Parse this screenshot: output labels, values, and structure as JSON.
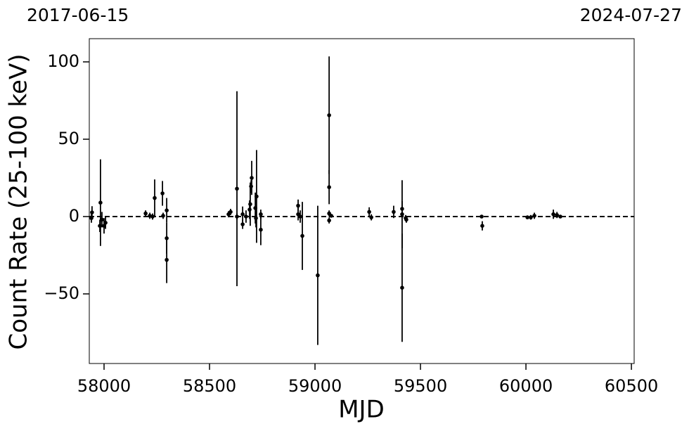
{
  "chart_data": {
    "type": "errorbar",
    "annotations": [
      "2017-06-15",
      "2024-07-27"
    ],
    "xlabel": "MJD",
    "ylabel": "Count Rate (25-100 keV)",
    "xlim": [
      57930,
      60513
    ],
    "ylim": [
      -95,
      115
    ],
    "xticks": [
      58000,
      58500,
      59000,
      59500,
      60000,
      60500
    ],
    "yticks": [
      {
        "value": -50,
        "label": "−50"
      },
      0,
      50,
      100
    ],
    "hline": 0,
    "color": "#000000",
    "grid": false,
    "x": [
      57943,
      57940,
      57980,
      57983,
      57990,
      58000,
      58007,
      58197,
      58217,
      58230,
      58240,
      58277,
      58280,
      58297,
      58297,
      58297,
      58590,
      58600,
      58630,
      58630,
      58657,
      58657,
      58673,
      58690,
      58693,
      58700,
      58697,
      58717,
      58723,
      58720,
      58743,
      58743,
      58920,
      58920,
      58930,
      58940,
      59013,
      59067,
      59067,
      59067,
      59067,
      59077,
      59257,
      59267,
      59373,
      59413,
      59413,
      59413,
      59430,
      59433,
      59790,
      59793,
      60007,
      60023,
      60040,
      60130,
      60147,
      60163
    ],
    "values": [
      2.7,
      -1,
      -6,
      9,
      -2,
      -6,
      -4,
      2,
      0.5,
      0,
      12,
      15,
      0.5,
      4,
      -14,
      -28,
      1.5,
      3,
      18,
      0,
      -5,
      1.5,
      0,
      4.5,
      8,
      25,
      19.5,
      5.5,
      13,
      -1,
      -8.5,
      1.5,
      7,
      1.5,
      0,
      -12.5,
      -38,
      65.5,
      19,
      2,
      -2.5,
      0.5,
      3,
      -0.5,
      3,
      5,
      1.5,
      -46,
      -1,
      -2,
      0,
      -6,
      -0.5,
      -0.5,
      0.5,
      1.5,
      1,
      0
    ],
    "errors": [
      4,
      3,
      4,
      28,
      5,
      5,
      4,
      2,
      2,
      2,
      12,
      8,
      2,
      8,
      10,
      15,
      2,
      2,
      63,
      2,
      3,
      5,
      4,
      6,
      14,
      11,
      4,
      10,
      30,
      6,
      10,
      3,
      4,
      4,
      4,
      22,
      45,
      38,
      11,
      2,
      2,
      1,
      3,
      2,
      4,
      5,
      22,
      35,
      2,
      2,
      1,
      3,
      1,
      1.5,
      2,
      3,
      2,
      1
    ]
  }
}
